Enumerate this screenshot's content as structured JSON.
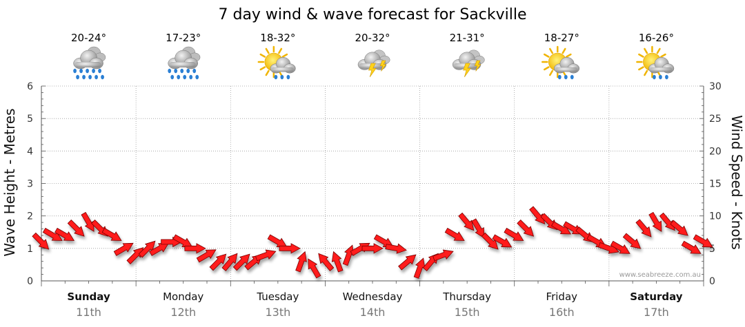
{
  "chart_data": {
    "type": "line",
    "title": "7 day wind & wave forecast for Sackville",
    "y_left_label": "Wave Height - Metres",
    "y_right_label": "Wind Speed - Knots",
    "y_left_range": [
      0,
      6
    ],
    "y_right_range": [
      0,
      30
    ],
    "y_left_ticks": [
      "0",
      "1",
      "2",
      "3",
      "4",
      "5",
      "6"
    ],
    "y_right_ticks": [
      "0",
      "5",
      "10",
      "15",
      "20",
      "25",
      "30"
    ],
    "grid": true,
    "watermark": "www.seabreeze.com.au",
    "days": [
      {
        "name": "Sunday",
        "date": "11th",
        "temp": "20-24°",
        "icon": "rain-cloud-icon",
        "bold": true
      },
      {
        "name": "Monday",
        "date": "12th",
        "temp": "17-23°",
        "icon": "rain-cloud-icon",
        "bold": false
      },
      {
        "name": "Tuesday",
        "date": "13th",
        "temp": "18-32°",
        "icon": "sun-shower-icon",
        "bold": false
      },
      {
        "name": "Wednesday",
        "date": "14th",
        "temp": "20-32°",
        "icon": "thunderstorm-icon",
        "bold": false
      },
      {
        "name": "Thursday",
        "date": "15th",
        "temp": "21-31°",
        "icon": "thunderstorm-icon",
        "bold": false
      },
      {
        "name": "Friday",
        "date": "16th",
        "temp": "18-27°",
        "icon": "sun-shower-icon",
        "bold": false
      },
      {
        "name": "Saturday",
        "date": "17th",
        "temp": "16-26°",
        "icon": "sun-shower-icon",
        "bold": true
      }
    ],
    "wind_series": {
      "name": "Wind Speed (knots)",
      "x_day": [
        0.0,
        0.125,
        0.25,
        0.375,
        0.5,
        0.625,
        0.75,
        0.875,
        1.0,
        1.125,
        1.25,
        1.375,
        1.5,
        1.625,
        1.75,
        1.875,
        2.0,
        2.125,
        2.25,
        2.375,
        2.5,
        2.625,
        2.75,
        2.875,
        3.0,
        3.125,
        3.25,
        3.375,
        3.5,
        3.625,
        3.75,
        3.875,
        4.0,
        4.125,
        4.25,
        4.375,
        4.5,
        4.625,
        4.75,
        4.875,
        5.0,
        5.125,
        5.25,
        5.375,
        5.5,
        5.625,
        5.75,
        5.875,
        6.0,
        6.125,
        6.25,
        6.375,
        6.5,
        6.625,
        6.75,
        6.875,
        7.0
      ],
      "knots": [
        6,
        7,
        7,
        8,
        9,
        8,
        7,
        5,
        4,
        5,
        5,
        6,
        6,
        5,
        4,
        3,
        3,
        3,
        3,
        4,
        6,
        5,
        3,
        2,
        3,
        3,
        4,
        5,
        5,
        6,
        5,
        3,
        2,
        3,
        4,
        7,
        9,
        8,
        6,
        6,
        7,
        8,
        10,
        9,
        8,
        8,
        7,
        6,
        5,
        5,
        6,
        8,
        9,
        9,
        8,
        5,
        6
      ],
      "directions_deg": [
        315,
        300,
        300,
        315,
        330,
        315,
        300,
        240,
        225,
        225,
        240,
        270,
        300,
        270,
        240,
        225,
        220,
        225,
        230,
        250,
        300,
        270,
        200,
        150,
        140,
        160,
        200,
        240,
        270,
        300,
        280,
        230,
        200,
        220,
        250,
        300,
        320,
        330,
        315,
        300,
        300,
        315,
        320,
        315,
        300,
        300,
        310,
        300,
        290,
        300,
        310,
        320,
        330,
        320,
        310,
        300,
        300
      ]
    }
  }
}
